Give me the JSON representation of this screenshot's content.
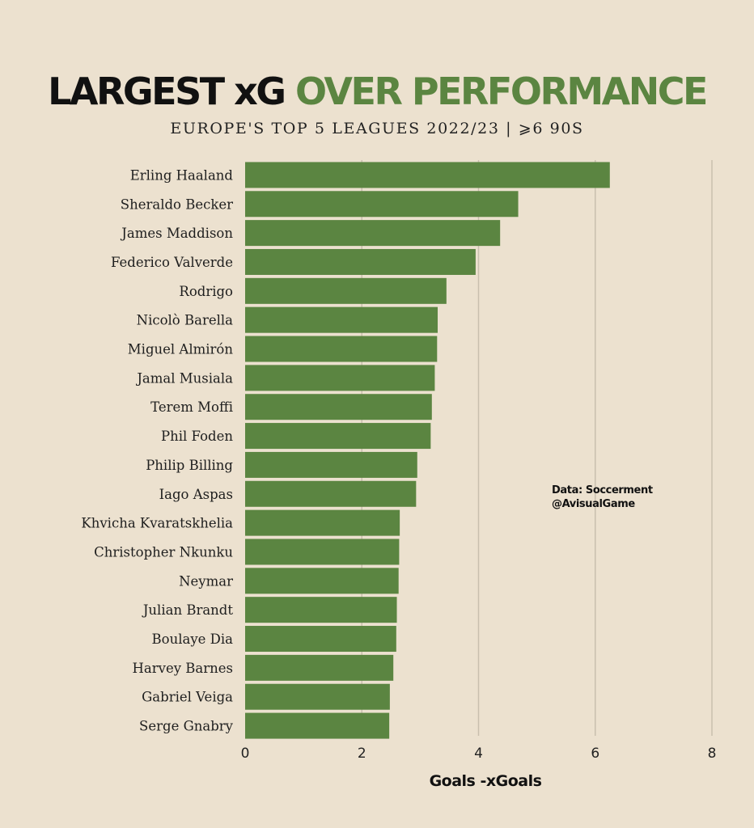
{
  "header": {
    "title_part1": "LARGEST xG ",
    "title_part2": "OVER PERFORMANCE",
    "subtitle": "EUROPE'S TOP 5 LEAGUES 2022/23  |  ⩾6 90S"
  },
  "credits": {
    "line1": "Data: Soccerment",
    "line2": "@AvisualGame"
  },
  "colors": {
    "background": "#ece1cf",
    "bar": "#5b8541",
    "title_accent": "#5b8541",
    "gridline": "#c9bfae"
  },
  "chart_data": {
    "type": "bar",
    "orientation": "horizontal",
    "title": "LARGEST xG OVER PERFORMANCE",
    "subtitle": "EUROPE'S TOP 5 LEAGUES 2022/23  |  ⩾6 90S",
    "xlabel": "Goals -xGoals",
    "ylabel": "",
    "xlim": [
      0,
      8
    ],
    "xticks": [
      0,
      2,
      4,
      6,
      8
    ],
    "grid": true,
    "categories": [
      "Erling Haaland",
      "Sheraldo Becker",
      "James Maddison",
      "Federico Valverde",
      "Rodrigo",
      "Nicolò Barella",
      "Miguel Almirón",
      "Jamal Musiala",
      "Terem Moffi",
      "Phil Foden",
      "Philip Billing",
      "Iago Aspas",
      "Khvicha Kvaratskhelia",
      "Christopher Nkunku",
      "Neymar",
      "Julian Brandt",
      "Boulaye Dia",
      "Harvey Barnes",
      "Gabriel Veiga",
      "Serge Gnabry"
    ],
    "values": [
      6.25,
      4.68,
      4.37,
      3.95,
      3.45,
      3.3,
      3.29,
      3.25,
      3.2,
      3.18,
      2.95,
      2.93,
      2.65,
      2.64,
      2.63,
      2.6,
      2.59,
      2.54,
      2.48,
      2.47
    ]
  }
}
